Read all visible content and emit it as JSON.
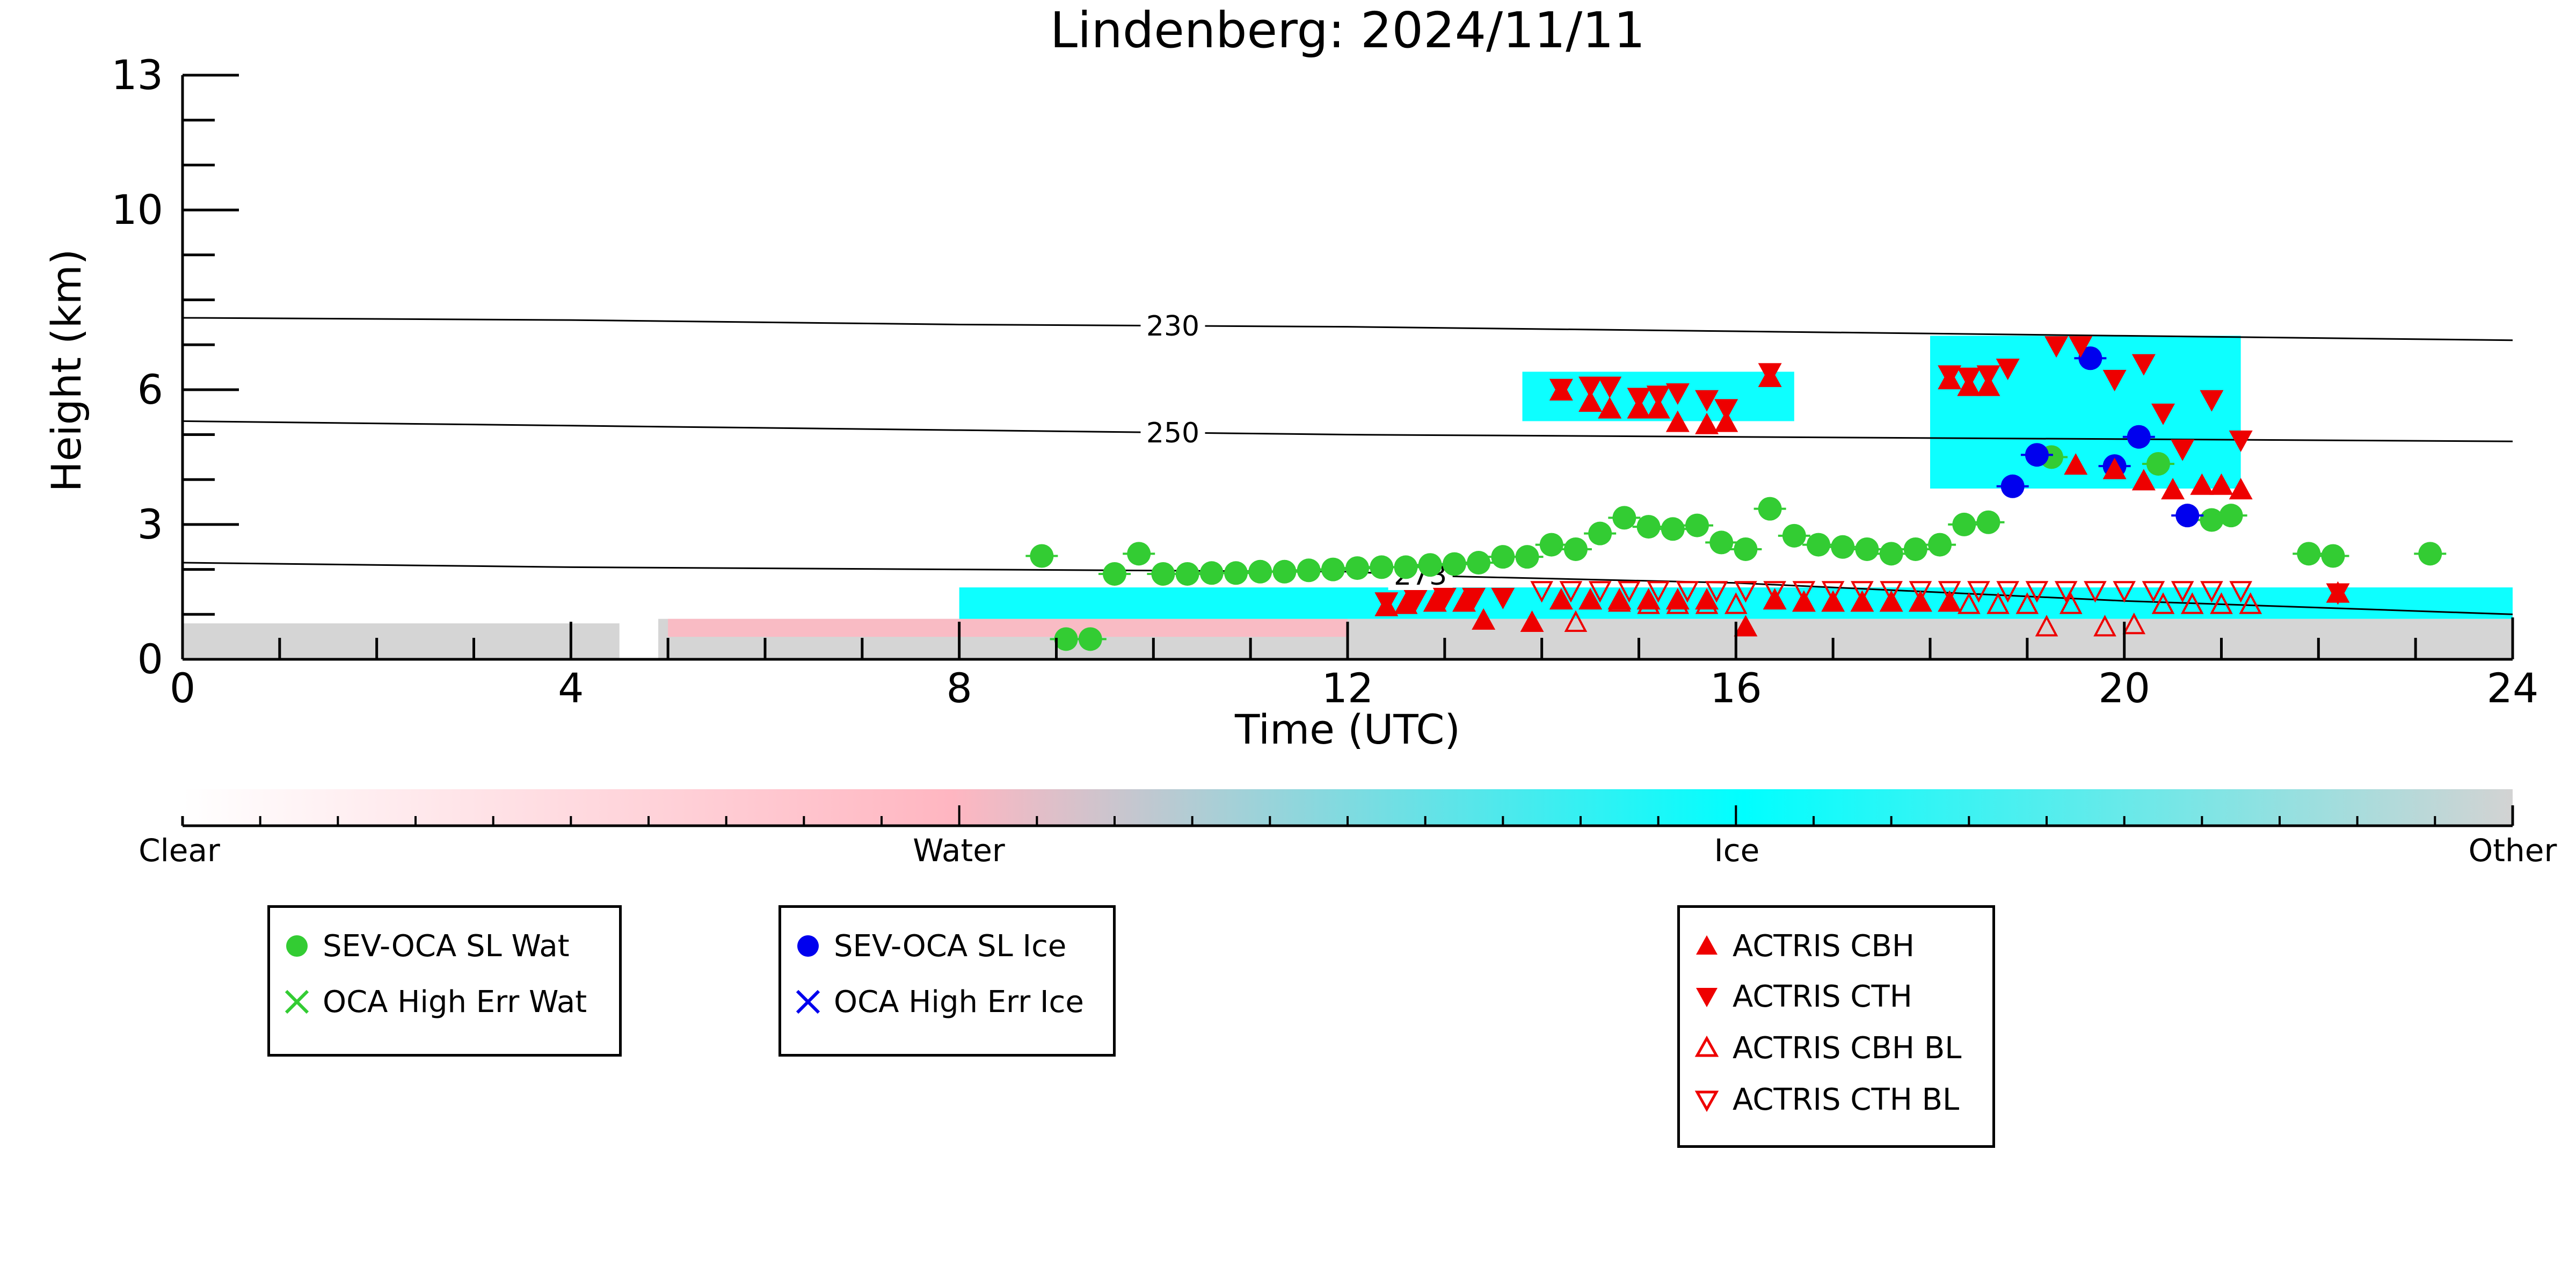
{
  "chart_data": {
    "type": "scatter",
    "title": "Lindenberg: 2024/11/11",
    "xlabel": "Time (UTC)",
    "ylabel": "Height (km)",
    "xlim": [
      0,
      24
    ],
    "ylim": [
      0,
      13
    ],
    "x_ticks": [
      0,
      4,
      8,
      12,
      16,
      20,
      24
    ],
    "y_ticks": [
      0,
      3,
      6,
      10,
      13
    ],
    "grid": false,
    "colorbar": {
      "labels": [
        "Clear",
        "Water",
        "Ice",
        "Other"
      ],
      "colors": [
        "#ffffff",
        "#ffb6c1",
        "#00ffff",
        "#d3d3d3"
      ]
    },
    "contours": [
      {
        "label": "230",
        "x": [
          0,
          4,
          8,
          12,
          16,
          20,
          24
        ],
        "y": [
          7.6,
          7.55,
          7.45,
          7.4,
          7.3,
          7.2,
          7.1
        ]
      },
      {
        "label": "250",
        "x": [
          0,
          4,
          8,
          12,
          16,
          20,
          24
        ],
        "y": [
          5.3,
          5.2,
          5.1,
          5.0,
          4.95,
          4.9,
          4.85
        ]
      },
      {
        "label": "273",
        "x": [
          0,
          4,
          8,
          12,
          13,
          16,
          20,
          24
        ],
        "y": [
          2.15,
          2.05,
          2.0,
          1.95,
          1.85,
          1.7,
          1.3,
          1.0
        ]
      }
    ],
    "background_masks": [
      {
        "class": "Other",
        "x": [
          0,
          4.5
        ],
        "y": [
          0,
          0.8
        ]
      },
      {
        "class": "Other",
        "x": [
          4.9,
          24
        ],
        "y": [
          0,
          0.9
        ]
      },
      {
        "class": "Water",
        "x": [
          5,
          12
        ],
        "y": [
          0.5,
          0.9
        ]
      },
      {
        "class": "Ice",
        "x": [
          8,
          24
        ],
        "y": [
          0.9,
          1.6
        ]
      },
      {
        "class": "Ice",
        "x": [
          13.8,
          16.6
        ],
        "y": [
          5.3,
          6.4
        ]
      },
      {
        "class": "Ice",
        "x": [
          18.0,
          21.2
        ],
        "y": [
          3.8,
          7.2
        ]
      }
    ],
    "series": [
      {
        "name": "SEV-OCA SL Wat",
        "color": "#33cc33",
        "marker": "circle",
        "points": [
          [
            8.85,
            2.3
          ],
          [
            9.1,
            0.45
          ],
          [
            9.35,
            0.45
          ],
          [
            9.6,
            1.9
          ],
          [
            9.85,
            2.35
          ],
          [
            10.1,
            1.9
          ],
          [
            10.35,
            1.9
          ],
          [
            10.6,
            1.92
          ],
          [
            10.85,
            1.92
          ],
          [
            11.1,
            1.95
          ],
          [
            11.35,
            1.95
          ],
          [
            11.6,
            1.98
          ],
          [
            11.85,
            2.0
          ],
          [
            12.1,
            2.03
          ],
          [
            12.35,
            2.05
          ],
          [
            12.6,
            2.05
          ],
          [
            12.85,
            2.1
          ],
          [
            13.1,
            2.12
          ],
          [
            13.35,
            2.15
          ],
          [
            13.6,
            2.28
          ],
          [
            13.85,
            2.28
          ],
          [
            14.1,
            2.55
          ],
          [
            14.35,
            2.45
          ],
          [
            14.6,
            2.8
          ],
          [
            14.85,
            3.15
          ],
          [
            15.1,
            2.95
          ],
          [
            15.35,
            2.9
          ],
          [
            15.6,
            2.98
          ],
          [
            15.85,
            2.6
          ],
          [
            16.1,
            2.45
          ],
          [
            16.35,
            3.35
          ],
          [
            16.6,
            2.75
          ],
          [
            16.85,
            2.55
          ],
          [
            17.1,
            2.5
          ],
          [
            17.35,
            2.45
          ],
          [
            17.6,
            2.35
          ],
          [
            17.85,
            2.45
          ],
          [
            18.1,
            2.55
          ],
          [
            18.35,
            3.0
          ],
          [
            18.6,
            3.05
          ],
          [
            19.25,
            4.5
          ],
          [
            20.35,
            4.35
          ],
          [
            20.9,
            3.1
          ],
          [
            21.1,
            3.2
          ],
          [
            21.9,
            2.35
          ],
          [
            22.15,
            2.3
          ],
          [
            23.15,
            2.35
          ]
        ]
      },
      {
        "name": "OCA High Err Wat",
        "color": "#33cc33",
        "marker": "x",
        "points": []
      },
      {
        "name": "SEV-OCA SL Ice",
        "color": "#0000ee",
        "marker": "circle",
        "points": [
          [
            18.85,
            3.85
          ],
          [
            19.1,
            4.55
          ],
          [
            19.65,
            6.7
          ],
          [
            19.9,
            4.3
          ],
          [
            20.15,
            4.95
          ],
          [
            20.65,
            3.2
          ]
        ]
      },
      {
        "name": "OCA High Err Ice",
        "color": "#0000ee",
        "marker": "x",
        "points": []
      },
      {
        "name": "ACTRIS CBH",
        "color": "#ee0000",
        "marker": "triangle-up",
        "points": [
          [
            12.4,
            1.15
          ],
          [
            12.6,
            1.2
          ],
          [
            12.9,
            1.25
          ],
          [
            13.2,
            1.25
          ],
          [
            13.4,
            0.85
          ],
          [
            13.9,
            0.8
          ],
          [
            14.2,
            1.3
          ],
          [
            14.5,
            1.3
          ],
          [
            14.8,
            1.3
          ],
          [
            15.1,
            1.3
          ],
          [
            15.4,
            1.3
          ],
          [
            15.7,
            1.3
          ],
          [
            16.1,
            0.7
          ],
          [
            16.4,
            1.3
          ],
          [
            16.7,
            1.25
          ],
          [
            17.0,
            1.25
          ],
          [
            17.3,
            1.25
          ],
          [
            17.6,
            1.25
          ],
          [
            17.9,
            1.25
          ],
          [
            18.2,
            1.25
          ],
          [
            14.2,
            5.95
          ],
          [
            14.5,
            5.7
          ],
          [
            14.7,
            5.55
          ],
          [
            15.0,
            5.55
          ],
          [
            15.2,
            5.55
          ],
          [
            15.4,
            5.25
          ],
          [
            15.7,
            5.2
          ],
          [
            15.9,
            5.25
          ],
          [
            16.35,
            6.25
          ],
          [
            18.2,
            6.2
          ],
          [
            18.4,
            6.05
          ],
          [
            18.6,
            6.05
          ],
          [
            19.5,
            4.3
          ],
          [
            19.9,
            4.2
          ],
          [
            20.2,
            3.95
          ],
          [
            20.5,
            3.75
          ],
          [
            20.8,
            3.85
          ],
          [
            21.0,
            3.85
          ],
          [
            21.2,
            3.75
          ],
          [
            22.2,
            1.45
          ]
        ]
      },
      {
        "name": "ACTRIS CTH",
        "color": "#ee0000",
        "marker": "triangle-down",
        "points": [
          [
            12.4,
            1.3
          ],
          [
            12.7,
            1.35
          ],
          [
            13.0,
            1.4
          ],
          [
            13.3,
            1.4
          ],
          [
            13.6,
            1.4
          ],
          [
            14.2,
            6.05
          ],
          [
            14.5,
            6.1
          ],
          [
            14.7,
            6.1
          ],
          [
            15.0,
            5.85
          ],
          [
            15.2,
            5.9
          ],
          [
            15.4,
            5.95
          ],
          [
            15.7,
            5.8
          ],
          [
            15.9,
            5.6
          ],
          [
            16.35,
            6.4
          ],
          [
            18.2,
            6.35
          ],
          [
            18.4,
            6.3
          ],
          [
            18.6,
            6.35
          ],
          [
            18.8,
            6.5
          ],
          [
            19.3,
            7.0
          ],
          [
            19.55,
            7.0
          ],
          [
            20.2,
            6.6
          ],
          [
            19.9,
            6.25
          ],
          [
            20.4,
            5.5
          ],
          [
            20.6,
            4.7
          ],
          [
            20.9,
            5.8
          ],
          [
            21.2,
            4.9
          ],
          [
            22.2,
            1.5
          ]
        ]
      },
      {
        "name": "ACTRIS CBH BL",
        "color": "#ee0000",
        "marker": "triangle-up-open",
        "points": [
          [
            14.35,
            0.8
          ],
          [
            14.8,
            1.25
          ],
          [
            15.1,
            1.2
          ],
          [
            15.4,
            1.2
          ],
          [
            15.7,
            1.2
          ],
          [
            16.0,
            1.2
          ],
          [
            18.4,
            1.2
          ],
          [
            18.7,
            1.2
          ],
          [
            19.0,
            1.2
          ],
          [
            19.2,
            0.7
          ],
          [
            19.45,
            1.2
          ],
          [
            19.8,
            0.7
          ],
          [
            20.1,
            0.75
          ],
          [
            20.4,
            1.2
          ],
          [
            20.7,
            1.2
          ],
          [
            21.0,
            1.2
          ],
          [
            21.3,
            1.2
          ]
        ]
      },
      {
        "name": "ACTRIS CTH BL",
        "color": "#ee0000",
        "marker": "triangle-down-open",
        "points": [
          [
            14.0,
            1.55
          ],
          [
            14.3,
            1.55
          ],
          [
            14.6,
            1.55
          ],
          [
            14.9,
            1.55
          ],
          [
            15.2,
            1.55
          ],
          [
            15.5,
            1.55
          ],
          [
            15.8,
            1.55
          ],
          [
            16.1,
            1.55
          ],
          [
            16.4,
            1.55
          ],
          [
            16.7,
            1.55
          ],
          [
            17.0,
            1.55
          ],
          [
            17.3,
            1.55
          ],
          [
            17.6,
            1.55
          ],
          [
            17.9,
            1.55
          ],
          [
            18.2,
            1.55
          ],
          [
            18.5,
            1.55
          ],
          [
            18.8,
            1.55
          ],
          [
            19.1,
            1.55
          ],
          [
            19.4,
            1.55
          ],
          [
            19.7,
            1.55
          ],
          [
            20.0,
            1.55
          ],
          [
            20.3,
            1.55
          ],
          [
            20.6,
            1.55
          ],
          [
            20.9,
            1.55
          ],
          [
            21.2,
            1.55
          ]
        ]
      }
    ]
  }
}
